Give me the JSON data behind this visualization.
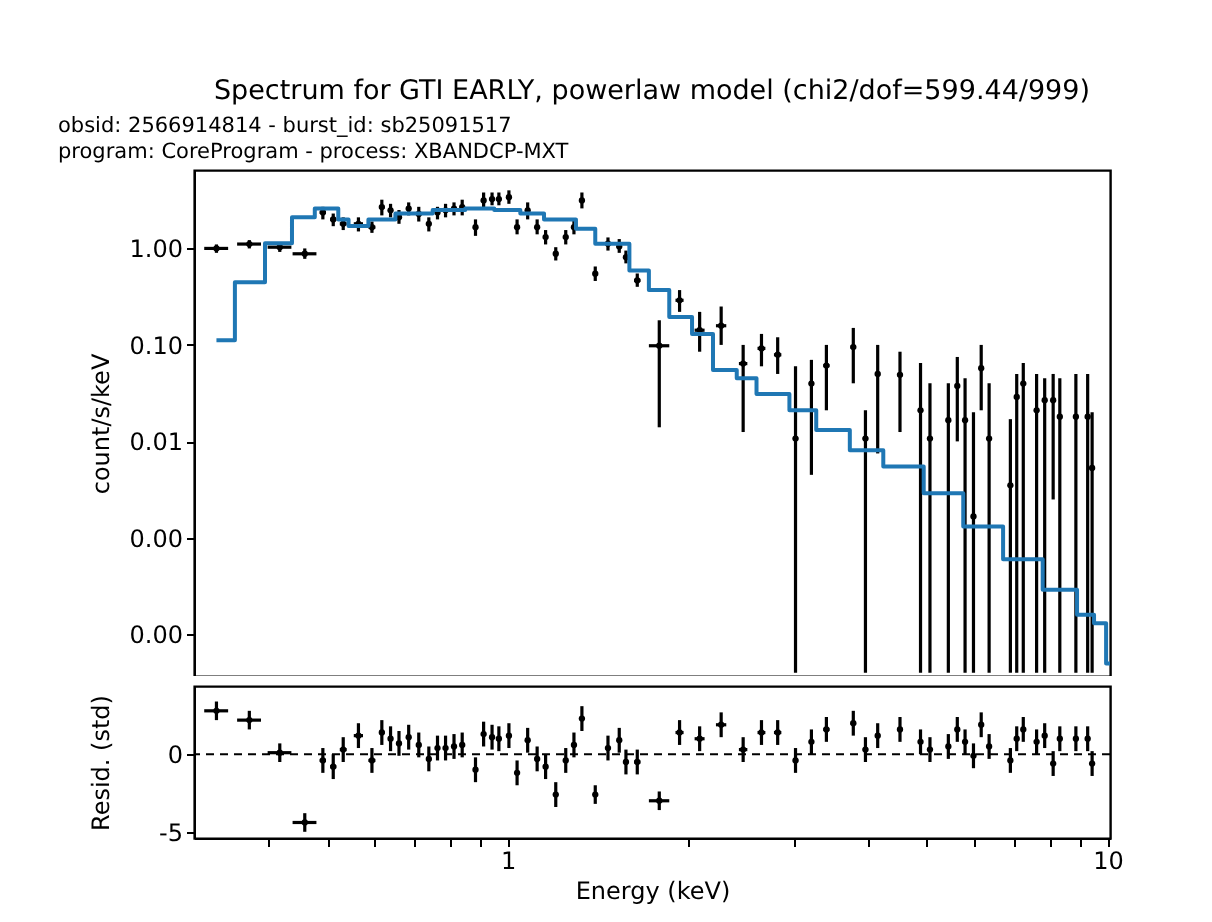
{
  "chart_data": [
    {
      "type": "scatter",
      "title": "Spectrum for GTI EARLY, powerlaw model (chi2/dof=599.44/999)",
      "annotations": [
        "obsid: 2566914814 - burst_id: sb25091517",
        "program: CoreProgram - process: XBANDCP-MXT"
      ],
      "ylabel": "count/s/keV",
      "log": "xy",
      "grid": false,
      "tick_labels": "y",
      "xlim": [
        0.3,
        10.1
      ],
      "xticks": [
        {
          "value": 0.4,
          "label": null
        },
        {
          "value": 0.5,
          "label": null
        },
        {
          "value": 0.6,
          "label": null
        },
        {
          "value": 0.7,
          "label": null
        },
        {
          "value": 0.8,
          "label": null
        },
        {
          "value": 0.9,
          "label": null
        },
        {
          "value": 1,
          "label": null
        },
        {
          "value": 2,
          "label": null
        },
        {
          "value": 3,
          "label": null
        },
        {
          "value": 4,
          "label": null
        },
        {
          "value": 5,
          "label": null
        },
        {
          "value": 6,
          "label": null
        },
        {
          "value": 7,
          "label": null
        },
        {
          "value": 8,
          "label": null
        },
        {
          "value": 9,
          "label": null
        },
        {
          "value": 10,
          "label": null
        }
      ],
      "ylim": [
        3.7e-05,
        6.5
      ],
      "yticks": [
        {
          "value": 0.0001,
          "label": "0.00"
        },
        {
          "value": 0.001,
          "label": "0.00"
        },
        {
          "value": 0.01,
          "label": "0.01"
        },
        {
          "value": 0.1,
          "label": "0.10"
        },
        {
          "value": 1,
          "label": "1.00"
        }
      ],
      "series": [
        {
          "color": "#000000",
          "x": [
            0.327,
            0.371,
            0.417,
            0.459,
            0.492,
            0.512,
            0.532,
            0.564,
            0.594,
            0.617,
            0.638,
            0.659,
            0.684,
            0.711,
            0.739,
            0.764,
            0.788,
            0.814,
            0.84,
            0.884,
            0.912,
            0.942,
            0.967,
            1.005,
            1.037,
            1.08,
            1.12,
            1.157,
            1.203,
            1.25,
            1.29,
            1.33,
            1.4,
            1.47,
            1.535,
            1.575,
            1.645,
            1.79,
            1.935,
            2.09,
            2.27,
            2.47,
            2.65,
            2.82,
            3.02,
            3.21,
            3.4,
            3.77,
            3.95,
            4.14,
            4.51,
            4.88,
            5.06,
            5.43,
            5.62,
            5.79,
            5.98,
            6.16,
            6.35,
            6.89,
            7.06,
            7.24,
            7.62,
            7.86,
            8.12,
            8.33,
            8.86,
            9.27,
            9.43
          ],
          "values": [
            1.0,
            1.11,
            1.03,
            0.88,
            2.36,
            2.0,
            1.8,
            1.8,
            1.66,
            2.68,
            2.48,
            2.11,
            2.59,
            2.28,
            1.8,
            2.36,
            2.48,
            2.59,
            2.68,
            1.66,
            3.14,
            3.25,
            3.25,
            3.4,
            1.66,
            2.48,
            1.66,
            1.31,
            0.88,
            1.31,
            1.66,
            3.14,
            0.546,
            1.12,
            1.05,
            0.81,
            0.466,
            0.098,
            0.29,
            0.142,
            0.158,
            0.064,
            0.092,
            0.079,
            0.0107,
            0.0397,
            0.061,
            0.095,
            0.0107,
            0.05,
            0.049,
            0.021,
            0.0107,
            0.0166,
            0.0376,
            0.0166,
            0.00167,
            0.0574,
            0.0107,
            0.0035,
            0.0289,
            0.0397,
            0.021,
            0.0267,
            0.0267,
            0.018,
            0.018,
            0.018,
            0.0053
          ],
          "errors": [
            [
              0.9,
              1.1
            ],
            [
              1.0,
              1.22
            ],
            [
              0.92,
              1.16
            ],
            [
              0.78,
              1.0
            ],
            [
              2.0,
              2.7
            ],
            [
              1.7,
              2.3
            ],
            [
              1.55,
              2.1
            ],
            [
              1.5,
              2.1
            ],
            [
              1.45,
              1.9
            ],
            [
              2.2,
              3.2
            ],
            [
              2.1,
              2.9
            ],
            [
              1.8,
              2.5
            ],
            [
              2.2,
              3.0
            ],
            [
              1.9,
              2.7
            ],
            [
              1.5,
              2.1
            ],
            [
              2.0,
              2.7
            ],
            [
              2.1,
              2.9
            ],
            [
              2.2,
              3.0
            ],
            [
              2.2,
              3.2
            ],
            [
              1.35,
              2.0
            ],
            [
              2.6,
              3.8
            ],
            [
              2.8,
              3.8
            ],
            [
              2.8,
              3.8
            ],
            [
              2.9,
              4.0
            ],
            [
              1.4,
              2.0
            ],
            [
              2.0,
              3.0
            ],
            [
              1.4,
              2.0
            ],
            [
              1.1,
              1.55
            ],
            [
              0.75,
              1.03
            ],
            [
              1.1,
              1.55
            ],
            [
              1.4,
              2.0
            ],
            [
              2.6,
              3.8
            ],
            [
              0.46,
              0.65
            ],
            [
              0.95,
              1.3
            ],
            [
              0.9,
              1.25
            ],
            [
              0.7,
              0.95
            ],
            [
              0.4,
              0.55
            ],
            [
              0.014,
              0.18
            ],
            [
              0.22,
              0.37
            ],
            [
              0.085,
              0.22
            ],
            [
              0.1,
              0.25
            ],
            [
              0.0125,
              0.1
            ],
            [
              0.06,
              0.13
            ],
            [
              0.05,
              0.12
            ],
            [
              4e-05,
              0.06
            ],
            [
              0.0045,
              0.07
            ],
            [
              0.021,
              0.1
            ],
            [
              0.04,
              0.15
            ],
            [
              4e-05,
              0.021
            ],
            [
              0.0075,
              0.1
            ],
            [
              0.0125,
              0.085
            ],
            [
              4e-05,
              0.065
            ],
            [
              4e-05,
              0.04
            ],
            [
              4e-05,
              0.04
            ],
            [
              0.01,
              0.075
            ],
            [
              4e-05,
              0.045
            ],
            [
              4e-05,
              0.02
            ],
            [
              0.021,
              0.1
            ],
            [
              4e-05,
              0.04
            ],
            [
              4e-05,
              0.017
            ],
            [
              4e-05,
              0.05
            ],
            [
              4e-05,
              0.065
            ],
            [
              4e-05,
              0.05
            ],
            [
              4e-05,
              0.045
            ],
            [
              0.0025,
              0.05
            ],
            [
              4e-05,
              0.045
            ],
            [
              4e-05,
              0.05
            ],
            [
              4e-05,
              0.05
            ],
            [
              4e-05,
              0.02
            ]
          ],
          "xerrors": [
            0.015,
            0.017,
            0.019,
            0.021,
            0.006,
            0.006,
            0.007,
            0.01,
            0.008,
            0.006,
            0.006,
            0.006,
            0.006,
            0.006,
            0.006,
            0.006,
            0.006,
            0.006,
            0.006,
            0.006,
            0.006,
            0.006,
            0.006,
            0.006,
            0.006,
            0.006,
            0.006,
            0.006,
            0.008,
            0.006,
            0.006,
            0.006,
            0.012,
            0.006,
            0.006,
            0.008,
            0.02,
            0.07,
            0.03,
            0.04,
            0.045,
            0.04,
            0.04,
            0.04,
            0.03,
            0.03,
            0.04,
            0.04,
            0.04,
            0.04,
            0.04,
            0.04,
            0.04,
            0.04,
            0.04,
            0.04,
            0.04,
            0.04,
            0.04,
            0.05,
            0.05,
            0.05,
            0.05,
            0.05,
            0.05,
            0.05,
            0.05,
            0.05,
            0.05
          ]
        },
        {
          "type": "step",
          "color": "#1f77b4",
          "x": [
            0.327,
            0.351,
            0.394,
            0.437,
            0.477,
            0.522,
            0.543,
            0.586,
            0.65,
            0.75,
            0.85,
            0.95,
            1.05,
            1.15,
            1.3,
            1.4,
            1.596,
            1.72,
            1.86,
            2.03,
            2.2,
            2.41,
            2.6,
            2.95,
            3.27,
            3.72,
            4.23,
            4.94,
            5.75,
            6.7,
            7.8,
            8.9,
            9.5,
            9.95,
            10.1
          ],
          "values": [
            0.112,
            0.445,
            1.13,
            2.11,
            2.59,
            2.0,
            1.71,
            2.0,
            2.3,
            2.5,
            2.6,
            2.5,
            2.3,
            2.0,
            1.6,
            1.12,
            0.59,
            0.37,
            0.195,
            0.13,
            0.055,
            0.045,
            0.031,
            0.021,
            0.0131,
            0.0081,
            0.0055,
            0.0029,
            0.00131,
            0.0006,
            0.00029,
            0.00016,
            0.00013,
            5e-05,
            5e-05
          ]
        }
      ]
    },
    {
      "type": "scatter",
      "xlabel": "Energy (keV)",
      "ylabel": "Resid. (std)",
      "log": "x",
      "grid": false,
      "xlim": [
        0.3,
        10.1
      ],
      "xticks": [
        {
          "value": 0.4,
          "label": null
        },
        {
          "value": 0.5,
          "label": null
        },
        {
          "value": 0.6,
          "label": null
        },
        {
          "value": 0.7,
          "label": null
        },
        {
          "value": 0.8,
          "label": null
        },
        {
          "value": 0.9,
          "label": null
        },
        1,
        {
          "value": 2,
          "label": null
        },
        {
          "value": 3,
          "label": null
        },
        {
          "value": 4,
          "label": null
        },
        {
          "value": 5,
          "label": null
        },
        {
          "value": 6,
          "label": null
        },
        {
          "value": 7,
          "label": null
        },
        {
          "value": 8,
          "label": null
        },
        {
          "value": 9,
          "label": null
        },
        10
      ],
      "ylim": [
        -5.4,
        4.4
      ],
      "yticks": [
        -5,
        0
      ],
      "ref_lines": [
        {
          "axis": "y",
          "value": 0,
          "color": "#000000",
          "line_style": "dashed"
        }
      ],
      "series": [
        {
          "color": "#000000",
          "x": [
            0.327,
            0.371,
            0.417,
            0.459,
            0.492,
            0.512,
            0.532,
            0.564,
            0.594,
            0.617,
            0.638,
            0.659,
            0.684,
            0.711,
            0.739,
            0.764,
            0.788,
            0.814,
            0.84,
            0.884,
            0.912,
            0.942,
            0.967,
            1.005,
            1.037,
            1.08,
            1.12,
            1.157,
            1.203,
            1.25,
            1.29,
            1.33,
            1.4,
            1.47,
            1.535,
            1.575,
            1.645,
            1.79,
            1.935,
            2.09,
            2.27,
            2.47,
            2.65,
            2.82,
            3.02,
            3.21,
            3.4,
            3.77,
            3.95,
            4.14,
            4.51,
            4.88,
            5.06,
            5.43,
            5.62,
            5.79,
            5.98,
            6.16,
            6.35,
            6.89,
            7.06,
            7.24,
            7.62,
            7.86,
            8.12,
            8.33,
            8.86,
            9.27,
            9.43
          ],
          "values": [
            2.8,
            2.2,
            0.1,
            -4.4,
            -0.4,
            -0.8,
            0.3,
            1.2,
            -0.4,
            1.4,
            1.0,
            0.7,
            1.1,
            0.6,
            -0.3,
            0.4,
            0.4,
            0.5,
            0.6,
            -1.0,
            1.3,
            1.1,
            1.0,
            1.2,
            -1.2,
            0.9,
            -0.3,
            -0.8,
            -2.6,
            -0.4,
            0.6,
            2.3,
            -2.6,
            0.4,
            0.9,
            -0.5,
            -0.5,
            -3.0,
            1.4,
            1.0,
            1.9,
            0.3,
            1.4,
            1.4,
            -0.4,
            0.8,
            1.6,
            2.0,
            0.3,
            1.2,
            1.6,
            0.8,
            0.3,
            0.5,
            1.6,
            0.8,
            -0.1,
            1.9,
            0.5,
            -0.4,
            1.0,
            1.6,
            0.8,
            1.2,
            -0.6,
            1.0,
            1.0,
            1.0,
            -0.6
          ],
          "errors": [
            0.6,
            0.6,
            0.6,
            0.6,
            0.8,
            0.8,
            0.8,
            0.8,
            0.8,
            0.8,
            0.8,
            0.8,
            0.8,
            0.8,
            0.8,
            0.8,
            0.8,
            0.8,
            0.8,
            0.8,
            0.8,
            0.8,
            0.8,
            0.8,
            0.8,
            0.8,
            0.8,
            0.8,
            0.8,
            0.8,
            0.8,
            0.8,
            0.6,
            0.8,
            0.8,
            0.8,
            0.8,
            0.6,
            0.8,
            0.8,
            0.8,
            0.8,
            0.8,
            0.8,
            0.8,
            0.8,
            0.8,
            0.8,
            0.8,
            0.8,
            0.8,
            0.8,
            0.8,
            0.8,
            0.8,
            0.8,
            0.8,
            0.8,
            0.8,
            0.8,
            0.8,
            0.8,
            0.8,
            0.8,
            0.8,
            0.8,
            0.8,
            0.8,
            0.8
          ],
          "xerrors": [
            0.015,
            0.017,
            0.019,
            0.021,
            0.006,
            0.006,
            0.007,
            0.01,
            0.008,
            0.006,
            0.006,
            0.006,
            0.006,
            0.006,
            0.006,
            0.006,
            0.006,
            0.006,
            0.006,
            0.006,
            0.006,
            0.006,
            0.006,
            0.006,
            0.006,
            0.006,
            0.006,
            0.006,
            0.008,
            0.006,
            0.006,
            0.006,
            0.012,
            0.006,
            0.006,
            0.008,
            0.02,
            0.07,
            0.03,
            0.04,
            0.045,
            0.04,
            0.04,
            0.04,
            0.03,
            0.03,
            0.04,
            0.04,
            0.04,
            0.04,
            0.04,
            0.04,
            0.04,
            0.04,
            0.04,
            0.04,
            0.04,
            0.04,
            0.04,
            0.05,
            0.05,
            0.05,
            0.05,
            0.05,
            0.05,
            0.05,
            0.05,
            0.05,
            0.05
          ]
        }
      ]
    }
  ]
}
